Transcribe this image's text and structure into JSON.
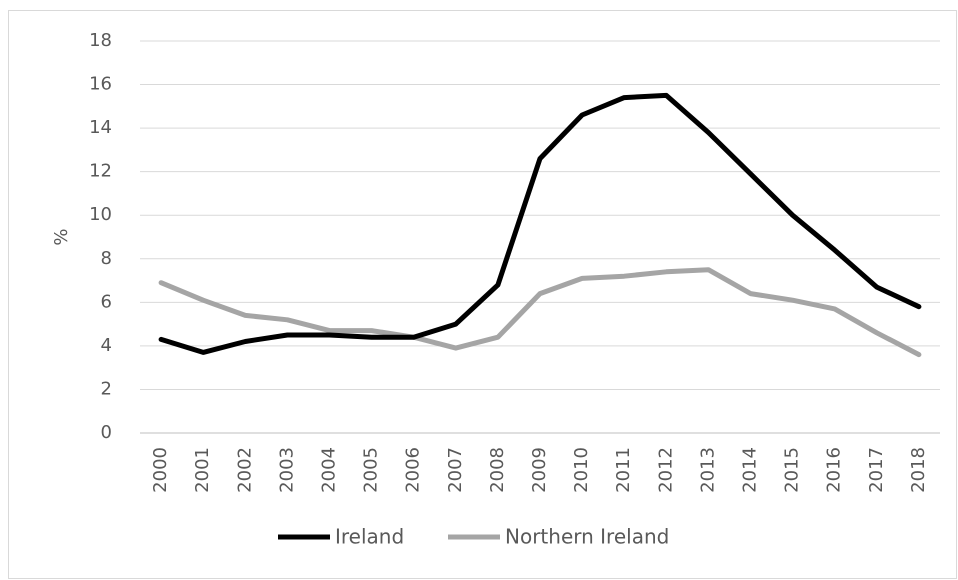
{
  "chart_data": {
    "type": "line",
    "y_label": "%",
    "categories": [
      "2000",
      "2001",
      "2002",
      "2003",
      "2004",
      "2005",
      "2006",
      "2007",
      "2008",
      "2009",
      "2010",
      "2011",
      "2012",
      "2013",
      "2014",
      "2015",
      "2016",
      "2017",
      "2018"
    ],
    "series": [
      {
        "name": "Ireland",
        "color": "#000000",
        "values": [
          4.3,
          3.7,
          4.2,
          4.5,
          4.5,
          4.4,
          4.4,
          5.0,
          6.8,
          12.6,
          14.6,
          15.4,
          15.5,
          13.8,
          11.9,
          10.0,
          8.4,
          6.7,
          5.8
        ]
      },
      {
        "name": "Northern Ireland",
        "color": "#a5a5a5",
        "values": [
          6.9,
          6.1,
          5.4,
          5.2,
          4.7,
          4.7,
          4.4,
          3.9,
          4.4,
          6.4,
          7.1,
          7.2,
          7.4,
          7.5,
          6.4,
          6.1,
          5.7,
          4.6,
          3.6
        ]
      }
    ],
    "ylim": [
      0,
      18
    ],
    "yticks": [
      0,
      2,
      4,
      6,
      8,
      10,
      12,
      14,
      16,
      18
    ],
    "grid": true,
    "legend": "bottom"
  }
}
